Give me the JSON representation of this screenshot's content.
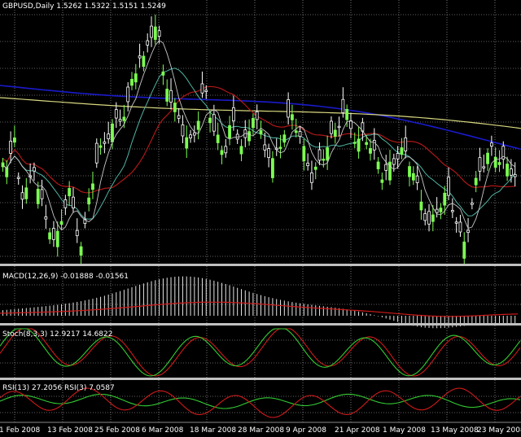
{
  "main": {
    "header": "GBPUSD,Daily  1.5262 1.5322 1.5151 1.5249",
    "colors": {
      "bull": "#7cff52",
      "bear": "#ffffff",
      "ma_blue": "#1a1acc",
      "ma_yellow": "#d8d880",
      "ma_red": "#b01818",
      "ma_teal": "#4fb4a4",
      "ma_white": "#c8c8c8",
      "grid": "#c8c8c8"
    }
  },
  "macd": {
    "header": "MACD(12,26,9) -0.01888 -0.01561",
    "colors": {
      "hist": "#e6e6e6",
      "signal": "#d01a1a"
    }
  },
  "stoch": {
    "header": "Stoch(8,3,3) 12.9217 14.6822",
    "colors": {
      "main": "#33cc33",
      "signal": "#d01a1a"
    }
  },
  "rsi": {
    "header": "RSI(13) 27.2056  RSI(3) 7.0587",
    "colors": {
      "rsi13": "#33cc33",
      "rsi3": "#d01a1a"
    }
  },
  "xaxis": {
    "labels": [
      "1 Feb 2008",
      "13 Feb 2008",
      "25 Feb 2008",
      "6 Mar 2008",
      "18 Mar 2008",
      "28 Mar 2008",
      "9 Apr 2008",
      "21 Apr 2008",
      "1 May 2008",
      "13 May 2008",
      "23 May 2008"
    ]
  }
}
